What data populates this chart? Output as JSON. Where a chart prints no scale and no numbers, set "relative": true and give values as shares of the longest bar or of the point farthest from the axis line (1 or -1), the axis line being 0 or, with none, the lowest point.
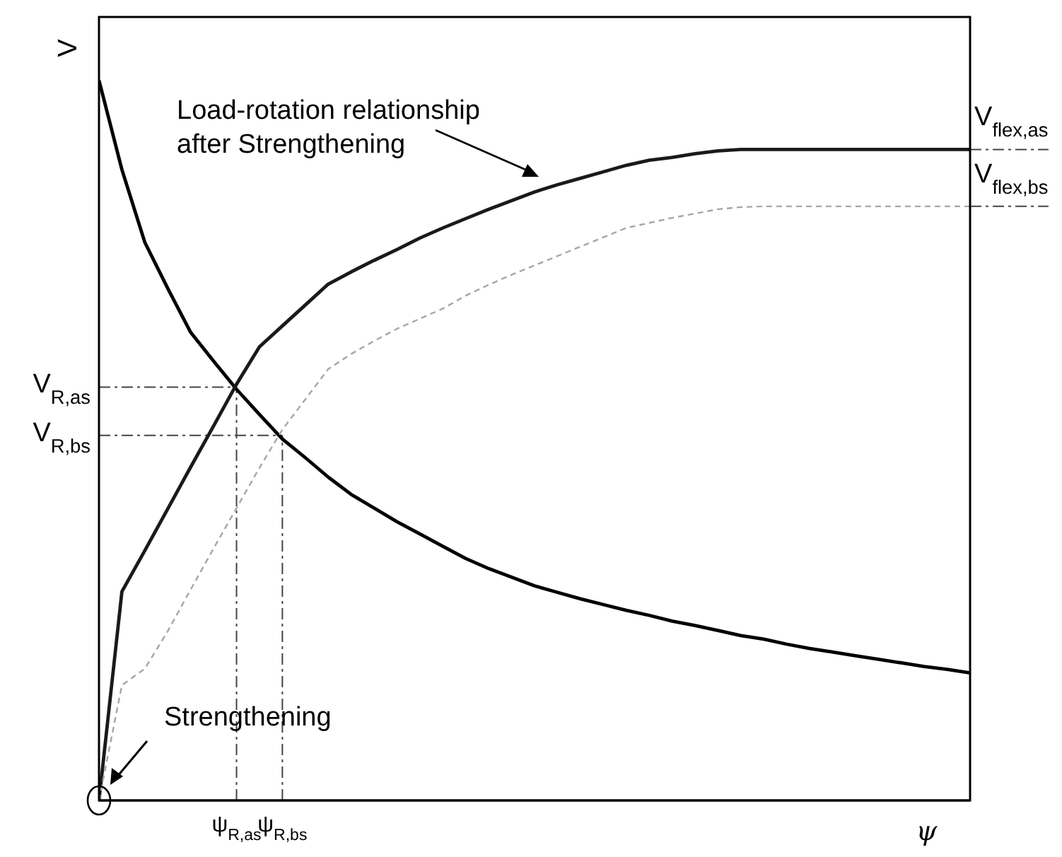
{
  "chart_data": {
    "type": "line",
    "relative": true,
    "xlabel": "ψ",
    "ylabel": "V",
    "line_style": "solid",
    "marker": "none",
    "categories": [
      null,
      null,
      null,
      null,
      null,
      null,
      "ψ$_{R,as}$",
      null,
      "ψ$_{R,bs}$",
      null,
      null,
      null,
      null,
      null,
      null,
      null,
      null,
      null,
      null,
      null,
      null,
      null,
      null,
      null,
      null,
      null,
      null,
      null,
      null,
      null,
      null,
      null,
      null,
      null,
      null,
      null,
      null,
      null,
      null
    ],
    "series": [
      {
        "color": "#000000",
        "values": [
          1.0,
          0.876,
          0.775,
          0.711,
          0.65,
          0.61,
          0.571,
          0.536,
          0.502,
          0.476,
          0.449,
          0.425,
          0.406,
          0.387,
          0.37,
          0.353,
          0.336,
          0.322,
          0.31,
          0.298,
          0.289,
          0.28,
          0.272,
          0.264,
          0.257,
          0.249,
          0.243,
          0.236,
          0.229,
          0.224,
          0.217,
          0.211,
          0.206,
          0.201,
          0.196,
          0.191,
          0.186,
          0.182,
          0.177
        ]
      },
      {
        "color": "#1a1a1a",
        "values": [
          0,
          0.29,
          0.347,
          0.405,
          0.463,
          0.52,
          0.578,
          0.63,
          0.659,
          0.688,
          0.717,
          0.734,
          0.75,
          0.765,
          0.781,
          0.795,
          0.808,
          0.821,
          0.833,
          0.845,
          0.855,
          0.864,
          0.873,
          0.882,
          0.889,
          0.893,
          0.898,
          0.902,
          0.904,
          0.904,
          0.904,
          0.904,
          0.904,
          0.904,
          0.904,
          0.904,
          0.904,
          0.904,
          0.904
        ]
      },
      {
        "color": "#a6a6a6",
        "line_style": "dashed",
        "values": [
          0,
          0.16,
          0.183,
          0.235,
          0.293,
          0.35,
          0.406,
          0.462,
          0.515,
          0.557,
          0.599,
          0.62,
          0.638,
          0.655,
          0.669,
          0.683,
          0.701,
          0.716,
          0.73,
          0.743,
          0.756,
          0.769,
          0.782,
          0.795,
          0.802,
          0.809,
          0.815,
          0.821,
          0.824,
          0.825,
          0.825,
          0.825,
          0.825,
          0.825,
          0.825,
          0.825,
          0.825,
          0.825,
          0.825
        ]
      }
    ],
    "ref_lines": [
      {
        "axis": "y",
        "value": 0.574,
        "label": "V$_{R,as}$"
      },
      {
        "axis": "y",
        "value": 0.507,
        "label": "V$_{R,bs}$"
      },
      {
        "axis": "x",
        "value": "ψ$_{R,as}$"
      },
      {
        "axis": "x",
        "value": "ψ$_{R,bs}$"
      },
      {
        "axis": "y",
        "value": 0.904,
        "label": "V$_{flex,as}$"
      },
      {
        "axis": "y",
        "value": 0.825,
        "label": "V$_{flex,bs}$"
      }
    ],
    "annotations": [
      "Load-rotation relationship after Strengthening",
      "Strengthening"
    ]
  }
}
